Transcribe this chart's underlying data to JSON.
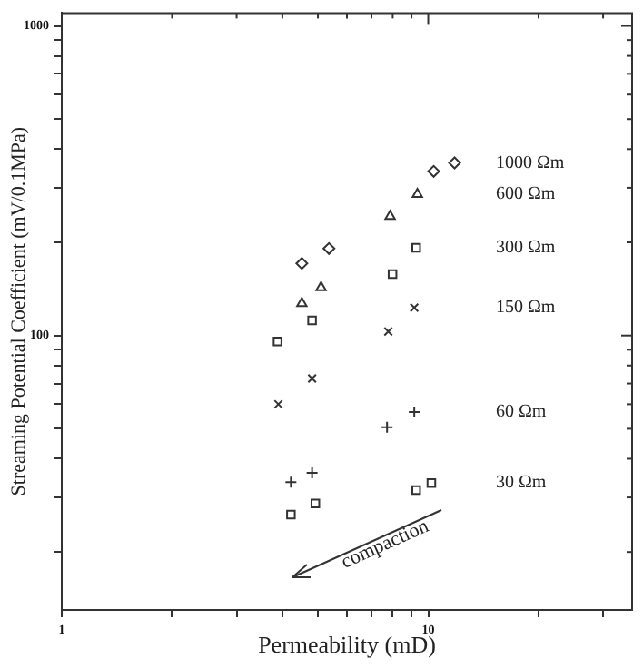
{
  "chart_data": {
    "type": "scatter",
    "xlabel": "Permeability (mD)",
    "ylabel": "Streaming Potential Coefficient (mV/0.1MPa)",
    "log": "xy",
    "grid": false,
    "legend": false,
    "xlim": [
      1,
      36
    ],
    "xticks": [
      1,
      {
        "value": 2,
        "label": null
      },
      {
        "value": 3,
        "label": null
      },
      {
        "value": 4,
        "label": null
      },
      {
        "value": 5,
        "label": null
      },
      {
        "value": 6,
        "label": null
      },
      {
        "value": 7,
        "label": null
      },
      {
        "value": 8,
        "label": null
      },
      {
        "value": 9,
        "label": null
      },
      10,
      {
        "value": 20,
        "label": null
      },
      {
        "value": 30,
        "label": null
      }
    ],
    "ylim": [
      13,
      1100
    ],
    "yticks": [
      {
        "value": 20,
        "label": null
      },
      {
        "value": 30,
        "label": null
      },
      {
        "value": 40,
        "label": null
      },
      {
        "value": 50,
        "label": null
      },
      {
        "value": 60,
        "label": null
      },
      {
        "value": 70,
        "label": null
      },
      {
        "value": 80,
        "label": null
      },
      {
        "value": 90,
        "label": null
      },
      100,
      {
        "value": 200,
        "label": null
      },
      {
        "value": 300,
        "label": null
      },
      {
        "value": 400,
        "label": null
      },
      {
        "value": 500,
        "label": null
      },
      {
        "value": 600,
        "label": null
      },
      {
        "value": 700,
        "label": null
      },
      {
        "value": 800,
        "label": null
      },
      {
        "value": 900,
        "label": null
      },
      1000
    ],
    "series": [
      {
        "name": "1000 Ωm",
        "color": "#333333",
        "marker": "diamond",
        "x": [
          4.52,
          5.36,
          10.35,
          11.8
        ],
        "values": [
          171,
          191,
          339,
          361
        ]
      },
      {
        "name": "600 Ωm",
        "color": "#333333",
        "marker": "triangle",
        "x": [
          4.52,
          5.1,
          7.87,
          9.34
        ],
        "values": [
          127,
          143,
          243,
          286
        ]
      },
      {
        "name": "300 Ωm",
        "color": "#333333",
        "marker": "square",
        "x": [
          3.88,
          4.82,
          7.99,
          9.27
        ],
        "values": [
          95.7,
          112,
          158,
          192
        ]
      },
      {
        "name": "150 Ωm",
        "color": "#333333",
        "marker": "cross",
        "x": [
          3.9,
          4.82,
          7.78,
          9.16
        ],
        "values": [
          60,
          72.7,
          103,
          123
        ]
      },
      {
        "name": "60 Ωm",
        "color": "#333333",
        "marker": "plus",
        "x": [
          4.22,
          4.82,
          7.72,
          9.16
        ],
        "values": [
          33.6,
          36,
          50.6,
          56.6
        ]
      },
      {
        "name": "30 Ωm",
        "color": "#333333",
        "marker": "square",
        "x": [
          4.22,
          4.92,
          9.27,
          10.2
        ],
        "values": [
          26.4,
          28.7,
          31.7,
          33.4
        ]
      }
    ],
    "annotations": [
      "compaction"
    ]
  }
}
